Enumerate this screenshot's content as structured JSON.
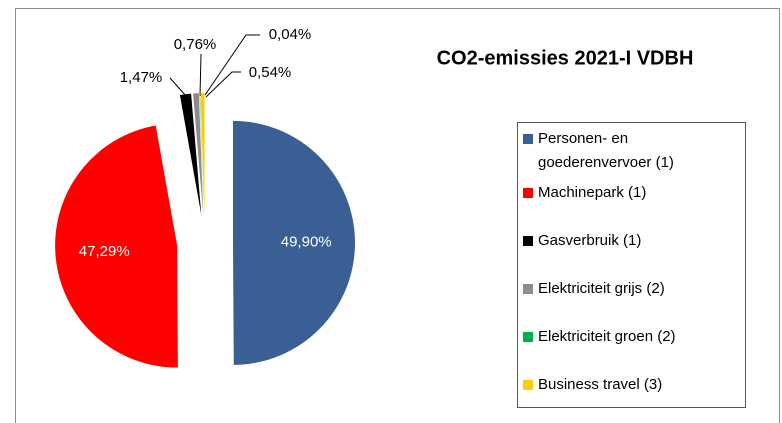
{
  "chart_data": {
    "type": "pie",
    "title": "CO2-emissies 2021-I VDBH",
    "categories": [
      "Personen- en goederenvervoer (1)",
      "Machinepark (1)",
      "Gasverbruik (1)",
      "Elektriciteit grijs (2)",
      "Elektriciteit groen (2)",
      "Business travel (3)"
    ],
    "values": [
      49.9,
      47.29,
      1.47,
      0.76,
      0.04,
      0.54
    ],
    "value_labels": [
      "49,90%",
      "47,29%",
      "1,47%",
      "0,76%",
      "0,04%",
      "0,54%"
    ],
    "colors": [
      "#3a5f94",
      "#ff0000",
      "#000000",
      "#8c8c8c",
      "#00b050",
      "#ffcc00"
    ],
    "legend": "right"
  }
}
